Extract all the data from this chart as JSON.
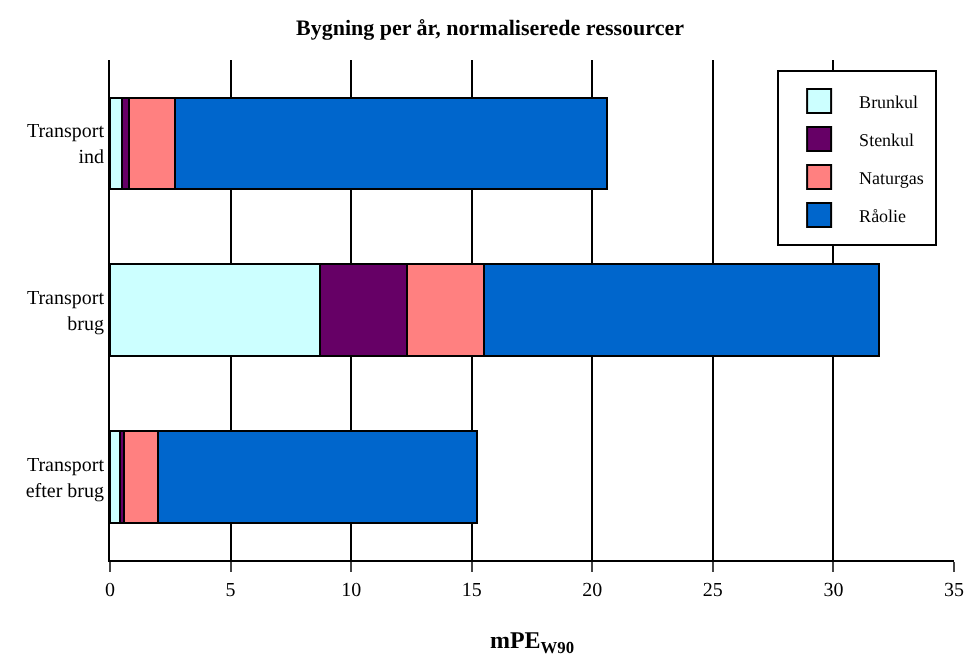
{
  "chart_data": {
    "type": "bar",
    "orientation": "horizontal",
    "stacked": true,
    "title": "Bygning per år, normaliserede ressourcer",
    "xlabel": "mPE$_{W90}$",
    "categories": [
      "Transport\nind",
      "Transport\nbrug",
      "Transport\nefter brug"
    ],
    "series": [
      {
        "name": "Brunkul",
        "color": "#ccffff",
        "values": [
          0.5,
          8.7,
          0.4
        ]
      },
      {
        "name": "Stenkul",
        "color": "#660066",
        "values": [
          0.3,
          3.6,
          0.2
        ]
      },
      {
        "name": "Naturgas",
        "color": "#ff8080",
        "values": [
          1.9,
          3.2,
          1.4
        ]
      },
      {
        "name": "Råolie",
        "color": "#0066cc",
        "values": [
          17.9,
          16.4,
          13.2
        ]
      }
    ],
    "xlim": [
      0,
      35
    ],
    "xticks": [
      0,
      5,
      10,
      15,
      20,
      25,
      30,
      35
    ],
    "grid": "x",
    "legend": "top right"
  }
}
